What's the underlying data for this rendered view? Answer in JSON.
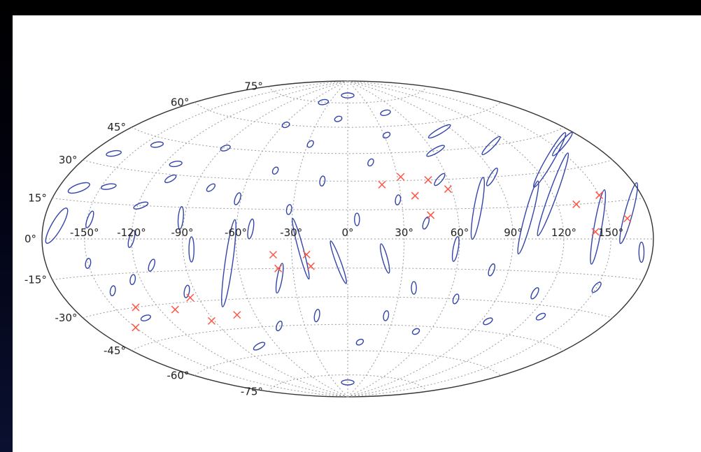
{
  "chart_data": {
    "type": "scatter",
    "projection": "hammer-aitoff",
    "grid": true,
    "x_ticks": [
      "-150°",
      "-120°",
      "-90°",
      "-60°",
      "-30°",
      "0°",
      "30°",
      "60°",
      "90°",
      "120°",
      "150°"
    ],
    "y_ticks": [
      "75°",
      "60°",
      "45°",
      "30°",
      "15°",
      "0°",
      "-15°",
      "-30°",
      "-45°",
      "-60°",
      "-75°"
    ],
    "x_tick_values": [
      -150,
      -120,
      -90,
      -60,
      -30,
      0,
      30,
      60,
      90,
      120,
      150
    ],
    "y_tick_values": [
      75,
      60,
      45,
      30,
      15,
      0,
      -15,
      -30,
      -45,
      -60,
      -75
    ],
    "xlim": [
      -180,
      180
    ],
    "ylim": [
      -90,
      90
    ],
    "colors": {
      "ellipse": "#3344aa",
      "marker": "#ff5544",
      "grid": "#9a9a9a",
      "outline": "#333333"
    },
    "series": [
      {
        "marker": "ellipse",
        "points": [
          [
            -170,
            5,
            4,
            16,
            30
          ],
          [
            -165,
            20,
            3,
            9,
            70
          ],
          [
            -163,
            35,
            2,
            6,
            80
          ],
          [
            -150,
            -10,
            2,
            4,
            10
          ],
          [
            -148,
            8,
            2,
            7,
            20
          ],
          [
            -145,
            22,
            2,
            6,
            80
          ],
          [
            -140,
            42,
            2,
            5,
            80
          ],
          [
            -142,
            -22,
            2,
            4,
            10
          ],
          [
            -135,
            -35,
            2,
            4,
            70
          ],
          [
            -125,
            -18,
            2,
            4,
            10
          ],
          [
            -120,
            0,
            2,
            7,
            15
          ],
          [
            -118,
            15,
            2,
            6,
            70
          ],
          [
            -112,
            35,
            2,
            5,
            80
          ],
          [
            -110,
            -12,
            2,
            5,
            20
          ],
          [
            -108,
            28,
            2,
            5,
            60
          ],
          [
            -95,
            -25,
            2,
            5,
            10
          ],
          [
            -92,
            10,
            2,
            9,
            5
          ],
          [
            -88,
            45,
            2,
            4,
            70
          ],
          [
            -85,
            -5,
            2,
            10,
            0
          ],
          [
            -80,
            25,
            2,
            4,
            50
          ],
          [
            -75,
            -55,
            2,
            5,
            60
          ],
          [
            -65,
            -12,
            3,
            35,
            8
          ],
          [
            -62,
            20,
            2,
            5,
            20
          ],
          [
            -58,
            60,
            2,
            3,
            70
          ],
          [
            -52,
            5,
            2,
            8,
            10
          ],
          [
            -48,
            -45,
            2,
            4,
            20
          ],
          [
            -45,
            35,
            2,
            3,
            30
          ],
          [
            -40,
            75,
            2,
            4,
            80
          ],
          [
            -38,
            -20,
            2,
            12,
            10
          ],
          [
            -32,
            15,
            2,
            4,
            10
          ],
          [
            -28,
            50,
            2,
            3,
            40
          ],
          [
            -25,
            -5,
            2,
            25,
            -15
          ],
          [
            -20,
            -40,
            2,
            5,
            10
          ],
          [
            -15,
            30,
            2,
            4,
            10
          ],
          [
            -10,
            65,
            2,
            3,
            70
          ],
          [
            -5,
            -12,
            2,
            18,
            -20
          ],
          [
            0,
            80,
            2,
            5,
            90
          ],
          [
            0,
            -80,
            2,
            5,
            90
          ],
          [
            5,
            10,
            2,
            5,
            0
          ],
          [
            10,
            -55,
            2,
            3,
            60
          ],
          [
            15,
            40,
            2,
            3,
            30
          ],
          [
            20,
            -10,
            2,
            12,
            -15
          ],
          [
            25,
            -40,
            2,
            4,
            10
          ],
          [
            28,
            20,
            2,
            4,
            10
          ],
          [
            32,
            55,
            2,
            3,
            60
          ],
          [
            38,
            -25,
            2,
            5,
            0
          ],
          [
            42,
            8,
            2,
            5,
            20
          ],
          [
            45,
            68,
            2,
            4,
            75
          ],
          [
            50,
            -48,
            2,
            3,
            60
          ],
          [
            55,
            30,
            2,
            6,
            40
          ],
          [
            58,
            -5,
            2,
            10,
            10
          ],
          [
            62,
            45,
            2,
            8,
            60
          ],
          [
            65,
            -30,
            2,
            4,
            20
          ],
          [
            72,
            15,
            3,
            25,
            10
          ],
          [
            78,
            55,
            2,
            10,
            60
          ],
          [
            80,
            -15,
            2,
            5,
            20
          ],
          [
            88,
            30,
            2,
            8,
            30
          ],
          [
            95,
            -40,
            2,
            4,
            60
          ],
          [
            100,
            10,
            3,
            30,
            15
          ],
          [
            105,
            45,
            2,
            10,
            45
          ],
          [
            112,
            -25,
            2,
            5,
            30
          ],
          [
            120,
            20,
            3,
            35,
            20
          ],
          [
            128,
            -35,
            2,
            4,
            60
          ],
          [
            135,
            35,
            3,
            25,
            30
          ],
          [
            142,
            5,
            3,
            30,
            10
          ],
          [
            150,
            -20,
            2,
            5,
            40
          ],
          [
            158,
            40,
            2,
            12,
            40
          ],
          [
            165,
            10,
            3,
            25,
            15
          ],
          [
            172,
            -5,
            2,
            8,
            0
          ]
        ]
      },
      {
        "marker": "x",
        "points": [
          [
            -135,
            -30
          ],
          [
            -150,
            -38
          ],
          [
            -110,
            -33
          ],
          [
            -95,
            -28
          ],
          [
            -92,
            -40
          ],
          [
            -72,
            -38
          ],
          [
            -40,
            -8
          ],
          [
            -38,
            -15
          ],
          [
            -22,
            -8
          ],
          [
            -20,
            -14
          ],
          [
            20,
            28
          ],
          [
            32,
            32
          ],
          [
            38,
            22
          ],
          [
            45,
            12
          ],
          [
            58,
            25
          ],
          [
            48,
            30
          ],
          [
            132,
            15
          ],
          [
            150,
            18
          ],
          [
            140,
            3
          ],
          [
            163,
            8
          ]
        ]
      }
    ]
  }
}
